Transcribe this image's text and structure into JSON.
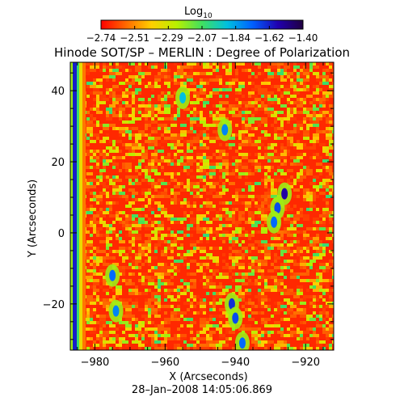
{
  "chart_data": {
    "type": "heatmap",
    "title": "Hinode SOT/SP – MERLIN : Degree of Polarization",
    "xlabel": "X (Arcseconds)",
    "ylabel": "Y (Arcseconds)",
    "xlim": [
      -987,
      -912
    ],
    "ylim": [
      -33,
      48
    ],
    "xticks": [
      -980,
      -960,
      -940,
      -920
    ],
    "yticks": [
      -20,
      0,
      20,
      40
    ],
    "colorbar": {
      "label": "Log",
      "label_subscript": "10",
      "range": [
        -2.74,
        -1.4
      ],
      "tick_labels": [
        "−2.74",
        "−2.51",
        "−2.29",
        "−2.07",
        "−1.84",
        "−1.62",
        "−1.40"
      ],
      "colors": [
        "#ff0000",
        "#ff6a00",
        "#ffd000",
        "#b8f000",
        "#40e060",
        "#00c0e0",
        "#0060ff",
        "#2000b0",
        "#200040"
      ]
    },
    "features": [
      {
        "x": -986,
        "y": 7,
        "value": -1.62,
        "note": "limb band"
      },
      {
        "x": -975,
        "y": -12,
        "value": -1.75
      },
      {
        "x": -974,
        "y": -22,
        "value": -1.8
      },
      {
        "x": -955,
        "y": 38,
        "value": -1.9
      },
      {
        "x": -943,
        "y": 29,
        "value": -1.8
      },
      {
        "x": -941,
        "y": -20,
        "value": -1.65
      },
      {
        "x": -940,
        "y": -24,
        "value": -1.7
      },
      {
        "x": -938,
        "y": -31,
        "value": -1.75
      },
      {
        "x": -926,
        "y": 11,
        "value": -1.55
      },
      {
        "x": -928,
        "y": 7,
        "value": -1.7
      },
      {
        "x": -929,
        "y": 3,
        "value": -1.75
      }
    ],
    "timestamp": "28–Jan–2008 14:05:06.869"
  }
}
